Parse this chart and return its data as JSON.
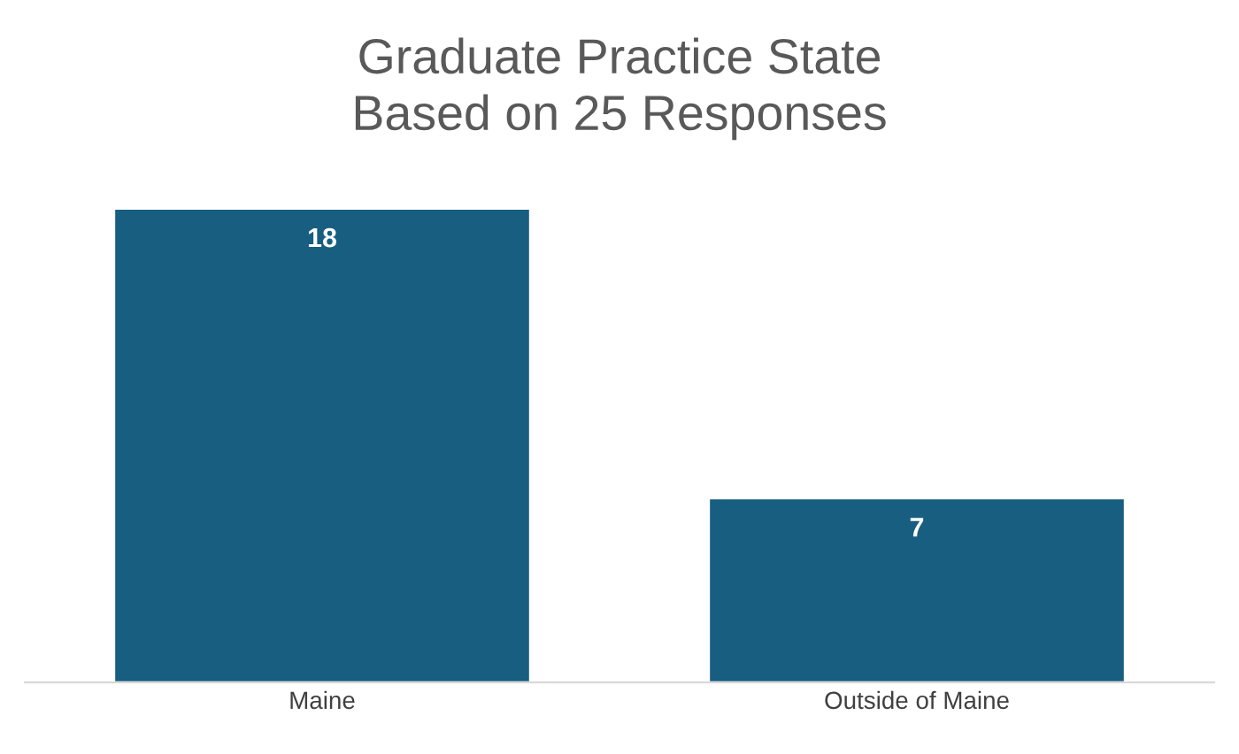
{
  "chart_data": {
    "type": "bar",
    "title": "Graduate Practice State\nBased on 25 Responses",
    "categories": [
      "Maine",
      "Outside of Maine"
    ],
    "values": [
      18,
      7
    ],
    "color": "#175e80",
    "data_labels": true,
    "grid": false,
    "legend": false
  }
}
